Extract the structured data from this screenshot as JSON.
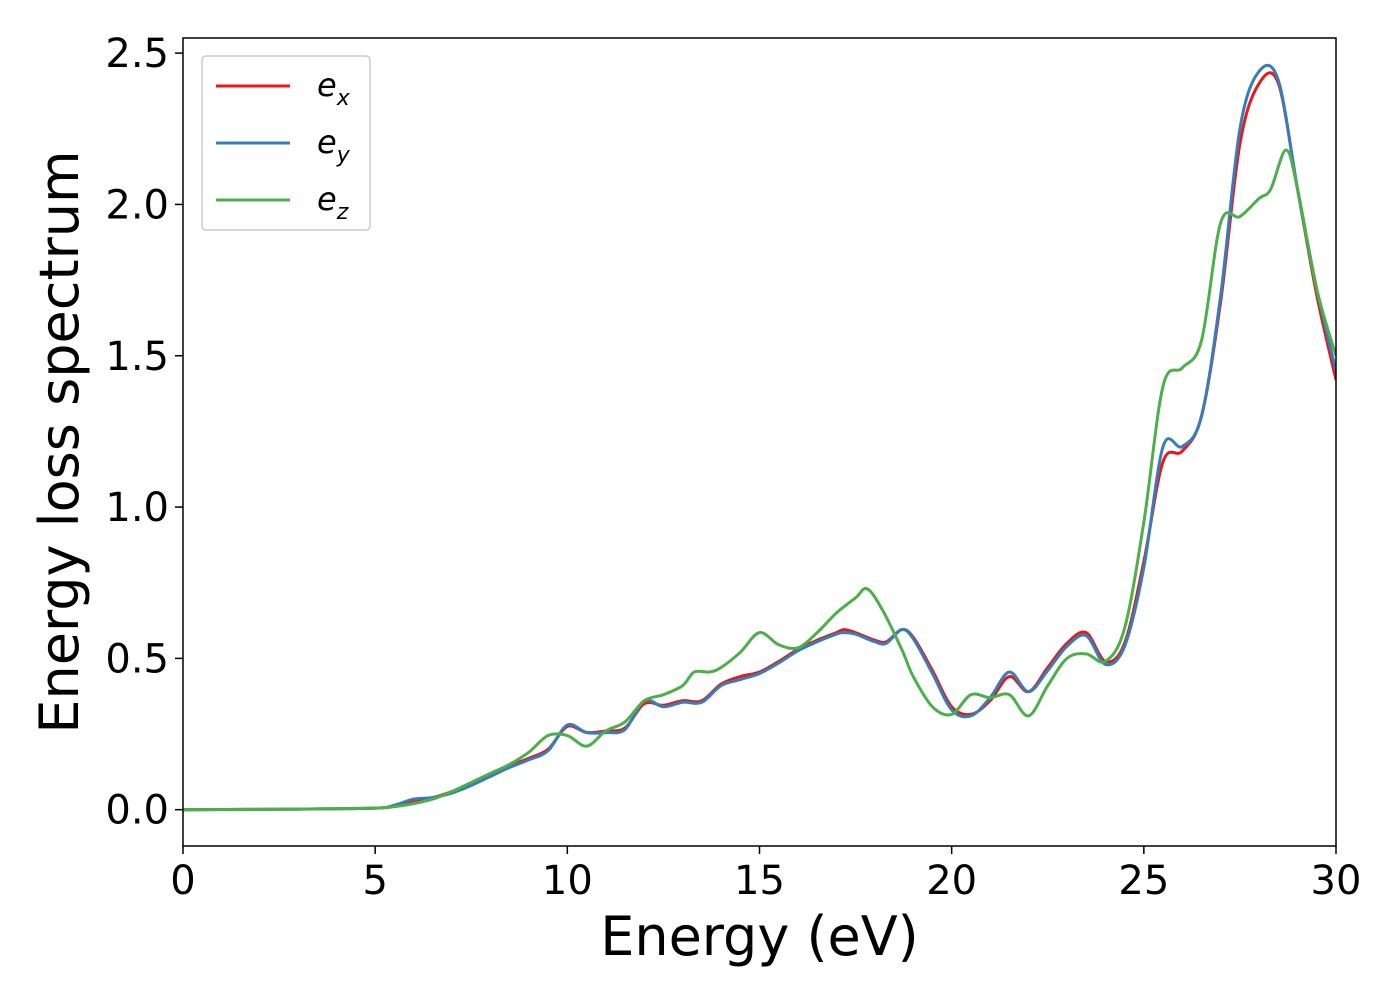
{
  "chart_data": {
    "type": "line",
    "xlabel": "Energy (eV)",
    "ylabel": "Energy loss spectrum",
    "xlim": [
      0,
      30
    ],
    "ylim": [
      -0.12,
      2.55
    ],
    "xticks": [
      "0",
      "5",
      "10",
      "15",
      "20",
      "25",
      "30"
    ],
    "yticks": [
      "0.0",
      "0.5",
      "1.0",
      "1.5",
      "2.0",
      "2.5"
    ],
    "grid": false,
    "legend_position": "top-left",
    "series": [
      {
        "name": "e",
        "subscript": "x",
        "color": "#e41a1c",
        "points": [
          [
            0,
            0.0
          ],
          [
            3,
            0.002
          ],
          [
            5,
            0.005
          ],
          [
            5.5,
            0.012
          ],
          [
            6,
            0.03
          ],
          [
            6.5,
            0.04
          ],
          [
            7,
            0.06
          ],
          [
            7.5,
            0.085
          ],
          [
            8,
            0.115
          ],
          [
            8.5,
            0.145
          ],
          [
            9,
            0.17
          ],
          [
            9.5,
            0.2
          ],
          [
            10,
            0.275
          ],
          [
            10.5,
            0.255
          ],
          [
            11,
            0.26
          ],
          [
            11.5,
            0.27
          ],
          [
            12,
            0.35
          ],
          [
            12.5,
            0.345
          ],
          [
            13,
            0.36
          ],
          [
            13.5,
            0.36
          ],
          [
            14,
            0.415
          ],
          [
            14.5,
            0.44
          ],
          [
            15,
            0.455
          ],
          [
            15.5,
            0.49
          ],
          [
            16,
            0.53
          ],
          [
            16.5,
            0.56
          ],
          [
            17,
            0.585
          ],
          [
            17.2,
            0.595
          ],
          [
            17.5,
            0.585
          ],
          [
            18,
            0.56
          ],
          [
            18.3,
            0.555
          ],
          [
            18.7,
            0.595
          ],
          [
            19,
            0.57
          ],
          [
            19.5,
            0.46
          ],
          [
            20,
            0.34
          ],
          [
            20.5,
            0.315
          ],
          [
            21,
            0.36
          ],
          [
            21.5,
            0.44
          ],
          [
            22,
            0.39
          ],
          [
            22.5,
            0.47
          ],
          [
            23,
            0.55
          ],
          [
            23.5,
            0.585
          ],
          [
            24,
            0.49
          ],
          [
            24.5,
            0.55
          ],
          [
            25,
            0.82
          ],
          [
            25.5,
            1.15
          ],
          [
            26,
            1.185
          ],
          [
            26.5,
            1.3
          ],
          [
            27,
            1.68
          ],
          [
            27.5,
            2.2
          ],
          [
            28,
            2.4
          ],
          [
            28.5,
            2.4
          ],
          [
            29,
            2.05
          ],
          [
            29.5,
            1.7
          ],
          [
            30,
            1.42
          ]
        ]
      },
      {
        "name": "e",
        "subscript": "y",
        "color": "#377eb8",
        "points": [
          [
            0,
            0.0
          ],
          [
            3,
            0.002
          ],
          [
            5,
            0.005
          ],
          [
            5.5,
            0.015
          ],
          [
            6,
            0.035
          ],
          [
            6.5,
            0.04
          ],
          [
            7,
            0.055
          ],
          [
            7.5,
            0.08
          ],
          [
            8,
            0.11
          ],
          [
            8.5,
            0.14
          ],
          [
            9,
            0.165
          ],
          [
            9.5,
            0.195
          ],
          [
            10,
            0.28
          ],
          [
            10.5,
            0.255
          ],
          [
            11,
            0.255
          ],
          [
            11.5,
            0.265
          ],
          [
            12,
            0.36
          ],
          [
            12.5,
            0.34
          ],
          [
            13,
            0.355
          ],
          [
            13.5,
            0.355
          ],
          [
            14,
            0.41
          ],
          [
            14.5,
            0.43
          ],
          [
            15,
            0.45
          ],
          [
            15.5,
            0.485
          ],
          [
            16,
            0.525
          ],
          [
            16.5,
            0.555
          ],
          [
            17,
            0.58
          ],
          [
            17.2,
            0.585
          ],
          [
            17.5,
            0.58
          ],
          [
            18,
            0.555
          ],
          [
            18.3,
            0.55
          ],
          [
            18.7,
            0.595
          ],
          [
            19,
            0.565
          ],
          [
            19.5,
            0.45
          ],
          [
            20,
            0.33
          ],
          [
            20.5,
            0.31
          ],
          [
            21,
            0.37
          ],
          [
            21.5,
            0.455
          ],
          [
            22,
            0.39
          ],
          [
            22.5,
            0.46
          ],
          [
            23,
            0.54
          ],
          [
            23.5,
            0.575
          ],
          [
            24,
            0.48
          ],
          [
            24.5,
            0.54
          ],
          [
            25,
            0.8
          ],
          [
            25.5,
            1.2
          ],
          [
            26,
            1.2
          ],
          [
            26.5,
            1.3
          ],
          [
            27,
            1.7
          ],
          [
            27.5,
            2.25
          ],
          [
            28,
            2.44
          ],
          [
            28.5,
            2.41
          ],
          [
            29,
            2.05
          ],
          [
            29.5,
            1.72
          ],
          [
            30,
            1.45
          ]
        ]
      },
      {
        "name": "e",
        "subscript": "z",
        "color": "#4daf4a",
        "points": [
          [
            0,
            0.0
          ],
          [
            3,
            0.002
          ],
          [
            5,
            0.005
          ],
          [
            5.5,
            0.01
          ],
          [
            6,
            0.02
          ],
          [
            6.5,
            0.035
          ],
          [
            7,
            0.06
          ],
          [
            7.5,
            0.09
          ],
          [
            8,
            0.12
          ],
          [
            8.5,
            0.15
          ],
          [
            9,
            0.19
          ],
          [
            9.5,
            0.245
          ],
          [
            10,
            0.245
          ],
          [
            10.5,
            0.21
          ],
          [
            11,
            0.26
          ],
          [
            11.5,
            0.29
          ],
          [
            12,
            0.36
          ],
          [
            12.5,
            0.38
          ],
          [
            13,
            0.41
          ],
          [
            13.3,
            0.455
          ],
          [
            13.7,
            0.455
          ],
          [
            14,
            0.47
          ],
          [
            14.5,
            0.52
          ],
          [
            15,
            0.585
          ],
          [
            15.5,
            0.545
          ],
          [
            16,
            0.535
          ],
          [
            16.5,
            0.585
          ],
          [
            17,
            0.65
          ],
          [
            17.5,
            0.7
          ],
          [
            17.8,
            0.73
          ],
          [
            18.2,
            0.66
          ],
          [
            18.7,
            0.53
          ],
          [
            19,
            0.44
          ],
          [
            19.5,
            0.34
          ],
          [
            20,
            0.315
          ],
          [
            20.5,
            0.38
          ],
          [
            21,
            0.37
          ],
          [
            21.5,
            0.38
          ],
          [
            22,
            0.31
          ],
          [
            22.5,
            0.41
          ],
          [
            23,
            0.5
          ],
          [
            23.5,
            0.515
          ],
          [
            24,
            0.49
          ],
          [
            24.5,
            0.6
          ],
          [
            25,
            0.95
          ],
          [
            25.5,
            1.4
          ],
          [
            26,
            1.46
          ],
          [
            26.5,
            1.55
          ],
          [
            27,
            1.94
          ],
          [
            27.5,
            1.96
          ],
          [
            28,
            2.02
          ],
          [
            28.3,
            2.05
          ],
          [
            28.7,
            2.18
          ],
          [
            29,
            2.05
          ],
          [
            29.5,
            1.72
          ],
          [
            30,
            1.5
          ]
        ]
      }
    ]
  }
}
